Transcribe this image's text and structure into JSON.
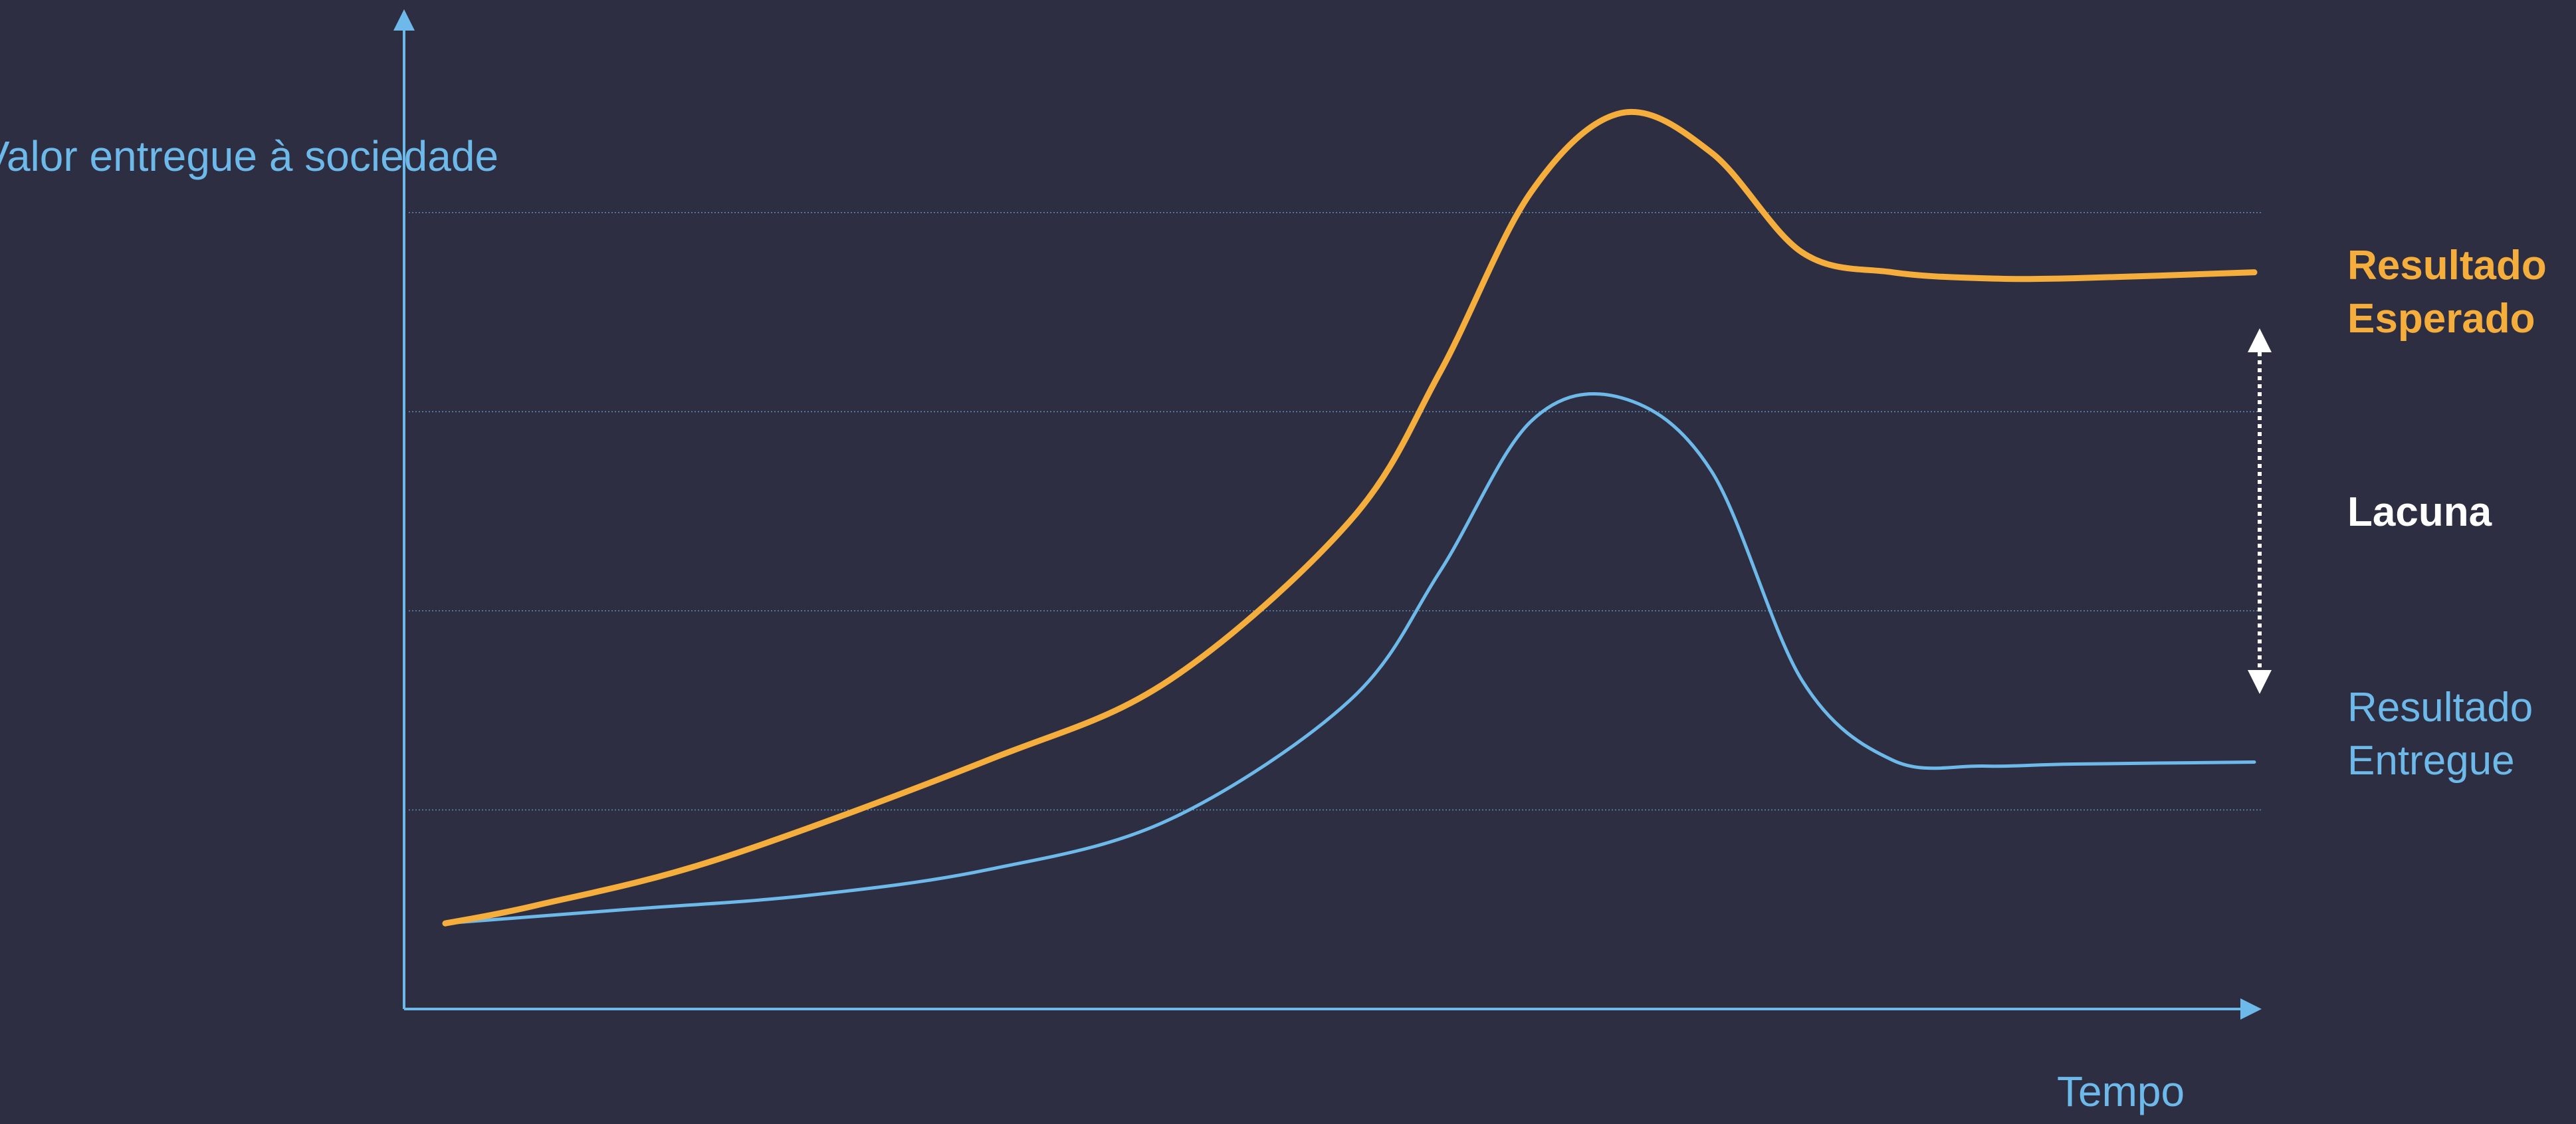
{
  "chart_data": {
    "type": "line",
    "ylabel": "Valor entregue à sociedade",
    "xlabel": "Tempo",
    "grid": true,
    "ylim": [
      0,
      4.5
    ],
    "xlim": [
      0,
      10
    ],
    "series": [
      {
        "name": "Resultado Esperado",
        "name_lines": [
          "Resultado",
          "Esperado"
        ],
        "color": "#f5ad3c",
        "x": [
          0,
          0.5,
          1.5,
          3,
          4,
          5,
          5.5,
          6,
          6.5,
          7,
          7.5,
          8,
          8.5,
          9,
          10
        ],
        "y": [
          0.43,
          0.52,
          0.75,
          1.25,
          1.65,
          2.45,
          3.2,
          4.1,
          4.5,
          4.3,
          3.8,
          3.7,
          3.67,
          3.67,
          3.7
        ]
      },
      {
        "name": "Resultado Entregue",
        "name_lines": [
          "Resultado",
          "Entregue"
        ],
        "color": "#6cb9ea",
        "x": [
          0,
          1,
          2,
          3,
          4,
          5,
          5.5,
          6,
          6.5,
          7,
          7.5,
          8,
          8.5,
          9,
          10
        ],
        "y": [
          0.43,
          0.5,
          0.57,
          0.7,
          0.95,
          1.55,
          2.2,
          2.95,
          3.07,
          2.7,
          1.65,
          1.25,
          1.22,
          1.23,
          1.24
        ]
      }
    ],
    "annotation": {
      "label": "Lacuna",
      "color": "#ffffff"
    },
    "colors": {
      "background": "#2e2e43",
      "axis": "#6cb9ea",
      "grid": "#6cb9ea"
    }
  }
}
